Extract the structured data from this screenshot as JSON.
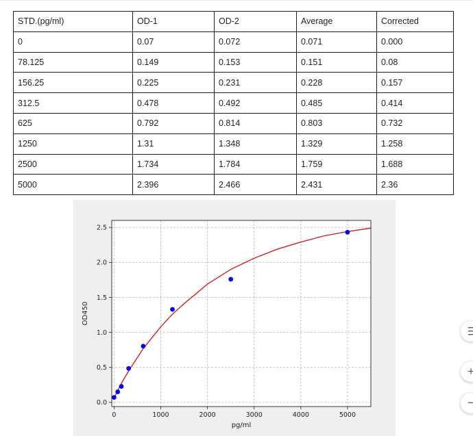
{
  "table": {
    "headers": [
      "STD.(pg/ml)",
      "OD-1",
      "OD-2",
      "Average",
      "Corrected"
    ],
    "rows": [
      [
        "0",
        "0.07",
        "0.072",
        "0.071",
        "0.000"
      ],
      [
        "78.125",
        "0.149",
        "0.153",
        "0.151",
        "0.08"
      ],
      [
        "156.25",
        "0.225",
        "0.231",
        "0.228",
        "0.157"
      ],
      [
        "312.5",
        "0.478",
        "0.492",
        "0.485",
        "0.414"
      ],
      [
        "625",
        "0.792",
        "0.814",
        "0.803",
        "0.732"
      ],
      [
        "1250",
        "1.31",
        "1.348",
        "1.329",
        "1.258"
      ],
      [
        "2500",
        "1.734",
        "1.784",
        "1.759",
        "1.688"
      ],
      [
        "5000",
        "2.396",
        "2.466",
        "2.431",
        "2.36"
      ]
    ]
  },
  "chart_data": {
    "type": "scatter",
    "title": "",
    "xlabel": "pg/ml",
    "ylabel": "OD450",
    "xlim": [
      -50,
      5500
    ],
    "ylim": [
      -0.06,
      2.6
    ],
    "xticks": [
      0,
      1000,
      2000,
      3000,
      4000,
      5000
    ],
    "yticks": [
      0.0,
      0.5,
      1.0,
      1.5,
      2.0,
      2.5
    ],
    "grid": true,
    "legend": "none",
    "points": {
      "x": [
        0,
        78.125,
        156.25,
        312.5,
        625,
        1250,
        2500,
        5000
      ],
      "y": [
        0.071,
        0.151,
        0.228,
        0.485,
        0.803,
        1.329,
        1.759,
        2.431
      ],
      "color": "#0000ee"
    },
    "fit_curve": {
      "x": [
        0,
        78.125,
        156.25,
        312.5,
        625,
        1000,
        1250,
        1500,
        2000,
        2500,
        3000,
        3500,
        4000,
        4500,
        5000,
        5500
      ],
      "y": [
        0.06,
        0.17,
        0.27,
        0.45,
        0.77,
        1.08,
        1.26,
        1.41,
        1.69,
        1.9,
        2.06,
        2.19,
        2.29,
        2.38,
        2.44,
        2.49
      ],
      "color": "#cc2222"
    }
  },
  "side_buttons": [
    {
      "name": "layout-icon",
      "glyph": "⇶"
    },
    {
      "name": "zoom-in-icon",
      "glyph": "+"
    },
    {
      "name": "zoom-out-icon",
      "glyph": "−"
    }
  ]
}
